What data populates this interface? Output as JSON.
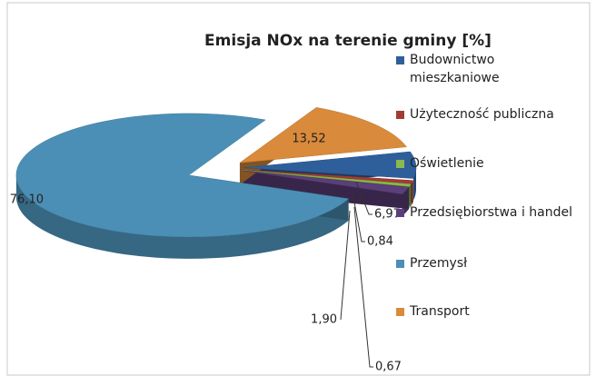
{
  "chart_data": {
    "type": "pie",
    "title": "Emisja NOx na terenie gminy [%]",
    "categories": [
      "Budownictwo mieszkaniowe",
      "Użyteczność publiczna",
      "Oświetlenie",
      "Przedsiębiorstwa i handel",
      "Przemysł",
      "Transport"
    ],
    "values": [
      6.97,
      0.84,
      0.67,
      1.9,
      76.1,
      13.52
    ],
    "value_labels": [
      "6,97",
      "0,84",
      "0,67",
      "1,90",
      "76,10",
      "13,52"
    ],
    "colors": [
      "#2f5f9b",
      "#a33b35",
      "#8cb84c",
      "#5b3f7a",
      "#4b8fb6",
      "#d98a3b"
    ],
    "legend": "right"
  }
}
